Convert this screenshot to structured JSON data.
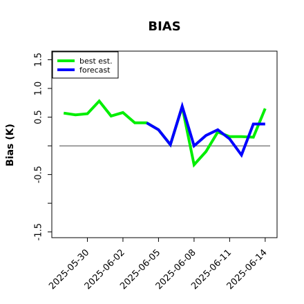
{
  "chart_data": {
    "type": "line",
    "title": "BIAS",
    "xlabel": "",
    "ylabel": "Bias (K)",
    "x": [
      "2025-05-28",
      "2025-05-29",
      "2025-05-30",
      "2025-05-31",
      "2025-06-01",
      "2025-06-02",
      "2025-06-03",
      "2025-06-04",
      "2025-06-05",
      "2025-06-06",
      "2025-06-07",
      "2025-06-08",
      "2025-06-09",
      "2025-06-10",
      "2025-06-11",
      "2025-06-12",
      "2025-06-13",
      "2025-06-14"
    ],
    "xticks": [
      "2025-05-30",
      "2025-06-02",
      "2025-06-05",
      "2025-06-08",
      "2025-06-11",
      "2025-06-14"
    ],
    "xtick_colors": [
      "#000000",
      "#000000",
      "#228B22",
      "#000000",
      "#000000",
      "#000000"
    ],
    "yticks": [
      -1.5,
      -1.0,
      -0.5,
      0.0,
      0.5,
      1.0,
      1.5
    ],
    "ytick_labels": [
      "-1.5",
      "",
      "-0.5",
      "",
      "0.5",
      "1.0",
      "1.5"
    ],
    "ylim": [
      -1.6,
      1.65
    ],
    "xlim": [
      "2025-05-27",
      "2025-06-15"
    ],
    "grid": false,
    "zero_line": 0.0,
    "legend_position": "top-left",
    "series": [
      {
        "name": "best est.",
        "color": "#00ee00",
        "x": [
          "2025-05-28",
          "2025-05-29",
          "2025-05-30",
          "2025-05-31",
          "2025-06-01",
          "2025-06-02",
          "2025-06-03",
          "2025-06-04",
          "2025-06-05",
          "2025-06-06",
          "2025-06-07",
          "2025-06-08",
          "2025-06-09",
          "2025-06-10",
          "2025-06-11",
          "2025-06-12",
          "2025-06-13",
          "2025-06-14"
        ],
        "values": [
          0.57,
          0.54,
          0.56,
          0.78,
          0.52,
          0.58,
          0.4,
          0.4,
          0.28,
          0.02,
          0.68,
          -0.33,
          -0.1,
          0.24,
          0.16,
          0.16,
          0.15,
          0.65
        ]
      },
      {
        "name": "forecast",
        "color": "#0000ff",
        "x": [
          "2025-06-04",
          "2025-06-05",
          "2025-06-06",
          "2025-06-07",
          "2025-06-08",
          "2025-06-09",
          "2025-06-10",
          "2025-06-11",
          "2025-06-12",
          "2025-06-13",
          "2025-06-14"
        ],
        "values": [
          0.4,
          0.28,
          0.02,
          0.69,
          0.0,
          0.18,
          0.28,
          0.12,
          -0.16,
          0.38,
          0.38
        ]
      }
    ]
  }
}
